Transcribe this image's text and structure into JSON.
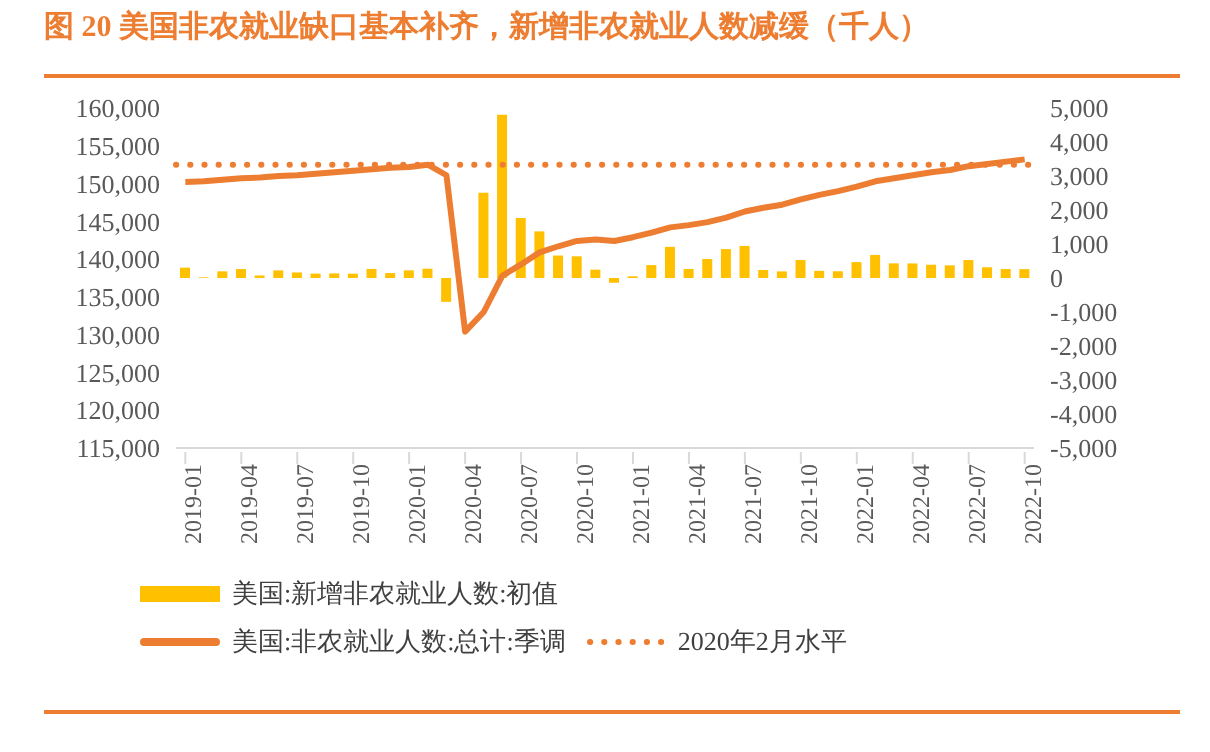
{
  "chart_data": {
    "type": "bar",
    "title": "图 20 美国非农就业缺口基本补齐，新增非农就业人数减缓（千人）",
    "categories": [
      "2019-01",
      null,
      null,
      "2019-04",
      null,
      null,
      "2019-07",
      null,
      null,
      "2019-10",
      null,
      null,
      "2020-01",
      null,
      null,
      "2020-04",
      null,
      null,
      "2020-07",
      null,
      null,
      "2020-10",
      null,
      null,
      "2021-01",
      null,
      null,
      "2021-04",
      null,
      null,
      "2021-07",
      null,
      null,
      "2021-10",
      null,
      null,
      "2022-01",
      null,
      null,
      "2022-04",
      null,
      null,
      "2022-07",
      null,
      null,
      "2022-10"
    ],
    "series": [
      {
        "name": "美国:新增非农就业人数:初值",
        "axis": "y2",
        "color": "#ffc000",
        "values": [
          304,
          20,
          196,
          263,
          75,
          224,
          164,
          130,
          136,
          128,
          266,
          145,
          225,
          273,
          -701,
          null,
          2509,
          4800,
          1763,
          1371,
          661,
          638,
          245,
          -140,
          49,
          379,
          916,
          266,
          559,
          850,
          943,
          235,
          194,
          531,
          210,
          199,
          467,
          678,
          431,
          428,
          390,
          372,
          528,
          315,
          263,
          261
        ]
      },
      {
        "name": "美国:非农就业人数:总计:季调",
        "type": "line",
        "color": "#ed7d31",
        "values": [
          150200,
          150300,
          150500,
          150700,
          150800,
          151000,
          151100,
          151300,
          151500,
          151700,
          151900,
          152100,
          152200,
          152500,
          151100,
          130400,
          133000,
          137800,
          139300,
          140900,
          141700,
          142400,
          142600,
          142400,
          142900,
          143500,
          144200,
          144500,
          144900,
          145500,
          146300,
          146800,
          147200,
          147900,
          148500,
          149000,
          149600,
          150300,
          150700,
          151100,
          151500,
          151800,
          152300,
          152600,
          152900,
          153200
        ]
      }
    ],
    "ylim": [
      115000,
      160000
    ],
    "yticks": [
      {
        "value": 115000,
        "label": "115,000"
      },
      {
        "value": 120000,
        "label": "120,000"
      },
      {
        "value": 125000,
        "label": "125,000"
      },
      {
        "value": 130000,
        "label": "130,000"
      },
      {
        "value": 135000,
        "label": "135,000"
      },
      {
        "value": 140000,
        "label": "140,000"
      },
      {
        "value": 145000,
        "label": "145,000"
      },
      {
        "value": 150000,
        "label": "150,000"
      },
      {
        "value": 155000,
        "label": "155,000"
      },
      {
        "value": 160000,
        "label": "160,000"
      }
    ],
    "y2lim": [
      -5000,
      5000
    ],
    "y2ticks": [
      {
        "value": -5000,
        "label": "-5,000"
      },
      {
        "value": -4000,
        "label": "-4,000"
      },
      {
        "value": -3000,
        "label": "-3,000"
      },
      {
        "value": -2000,
        "label": "-2,000"
      },
      {
        "value": -1000,
        "label": "-1,000"
      },
      0,
      {
        "value": 1000,
        "label": "1,000"
      },
      {
        "value": 2000,
        "label": "2,000"
      },
      {
        "value": 3000,
        "label": "3,000"
      },
      {
        "value": 4000,
        "label": "4,000"
      },
      {
        "value": 5000,
        "label": "5,000"
      }
    ],
    "ref_lines": [
      {
        "axis": "y",
        "value": 152500,
        "label": "2020年2月水平",
        "color": "#ed7d31",
        "line_style": "dotted"
      }
    ],
    "legend": "bottom",
    "grid": false
  }
}
